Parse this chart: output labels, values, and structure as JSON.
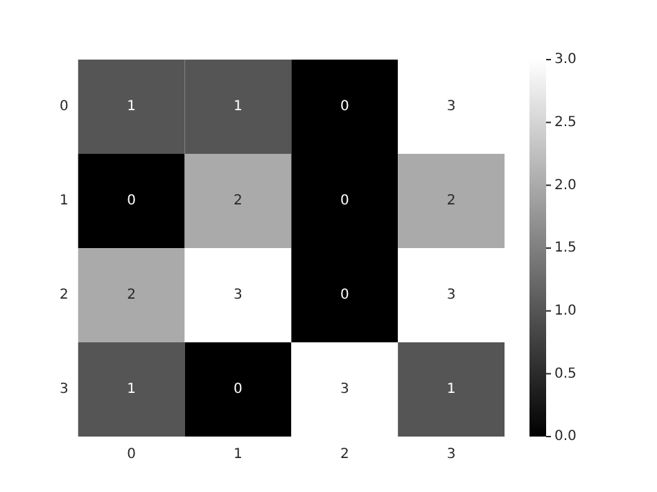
{
  "chart_data": {
    "type": "heatmap",
    "categories": [
      "0",
      "1",
      "2",
      "3"
    ],
    "y_categories": [
      "0",
      "1",
      "2",
      "3"
    ],
    "cells": [
      [
        1,
        1,
        0,
        3
      ],
      [
        0,
        2,
        0,
        2
      ],
      [
        2,
        3,
        0,
        3
      ],
      [
        1,
        0,
        3,
        1
      ]
    ],
    "clim": [
      0,
      3
    ],
    "cticks": [
      {
        "value": 0,
        "label": "0.0"
      },
      {
        "value": 0.5,
        "label": "0.5"
      },
      {
        "value": 1,
        "label": "1.0"
      },
      {
        "value": 1.5,
        "label": "1.5"
      },
      {
        "value": 2,
        "label": "2.0"
      },
      {
        "value": 2.5,
        "label": "2.5"
      },
      {
        "value": 3,
        "label": "3.0"
      }
    ],
    "data_labels": true,
    "grid": false
  }
}
